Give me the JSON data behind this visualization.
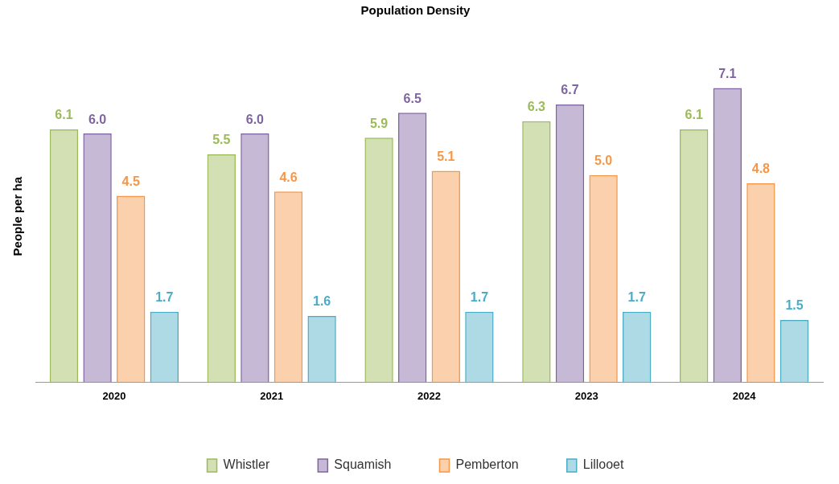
{
  "chart_data": {
    "type": "bar",
    "title": "Population Density",
    "ylabel": "People per ha",
    "categories": [
      "2020",
      "2021",
      "2022",
      "2023",
      "2024"
    ],
    "series": [
      {
        "name": "Whistler",
        "color": "#9bbb59",
        "values": [
          6.1,
          5.5,
          5.9,
          6.3,
          6.1
        ],
        "value_labels": [
          "6.1",
          "5.5",
          "5.9",
          "6.3",
          "6.1"
        ]
      },
      {
        "name": "Squamish",
        "color": "#8064a2",
        "values": [
          6.0,
          6.0,
          6.5,
          6.7,
          7.1
        ],
        "value_labels": [
          "6.0",
          "6.0",
          "6.5",
          "6.7",
          "7.1"
        ]
      },
      {
        "name": "Pemberton",
        "color": "#f79646",
        "values": [
          4.5,
          4.6,
          5.1,
          5.0,
          4.8
        ],
        "value_labels": [
          "4.5",
          "4.6",
          "5.1",
          "5.0",
          "4.8"
        ]
      },
      {
        "name": "Lillooet",
        "color": "#4bacc6",
        "values": [
          1.7,
          1.6,
          1.7,
          1.7,
          1.5
        ],
        "value_labels": [
          "1.7",
          "1.6",
          "1.7",
          "1.7",
          "1.5"
        ]
      }
    ],
    "grid": false,
    "legend": "bottom"
  }
}
